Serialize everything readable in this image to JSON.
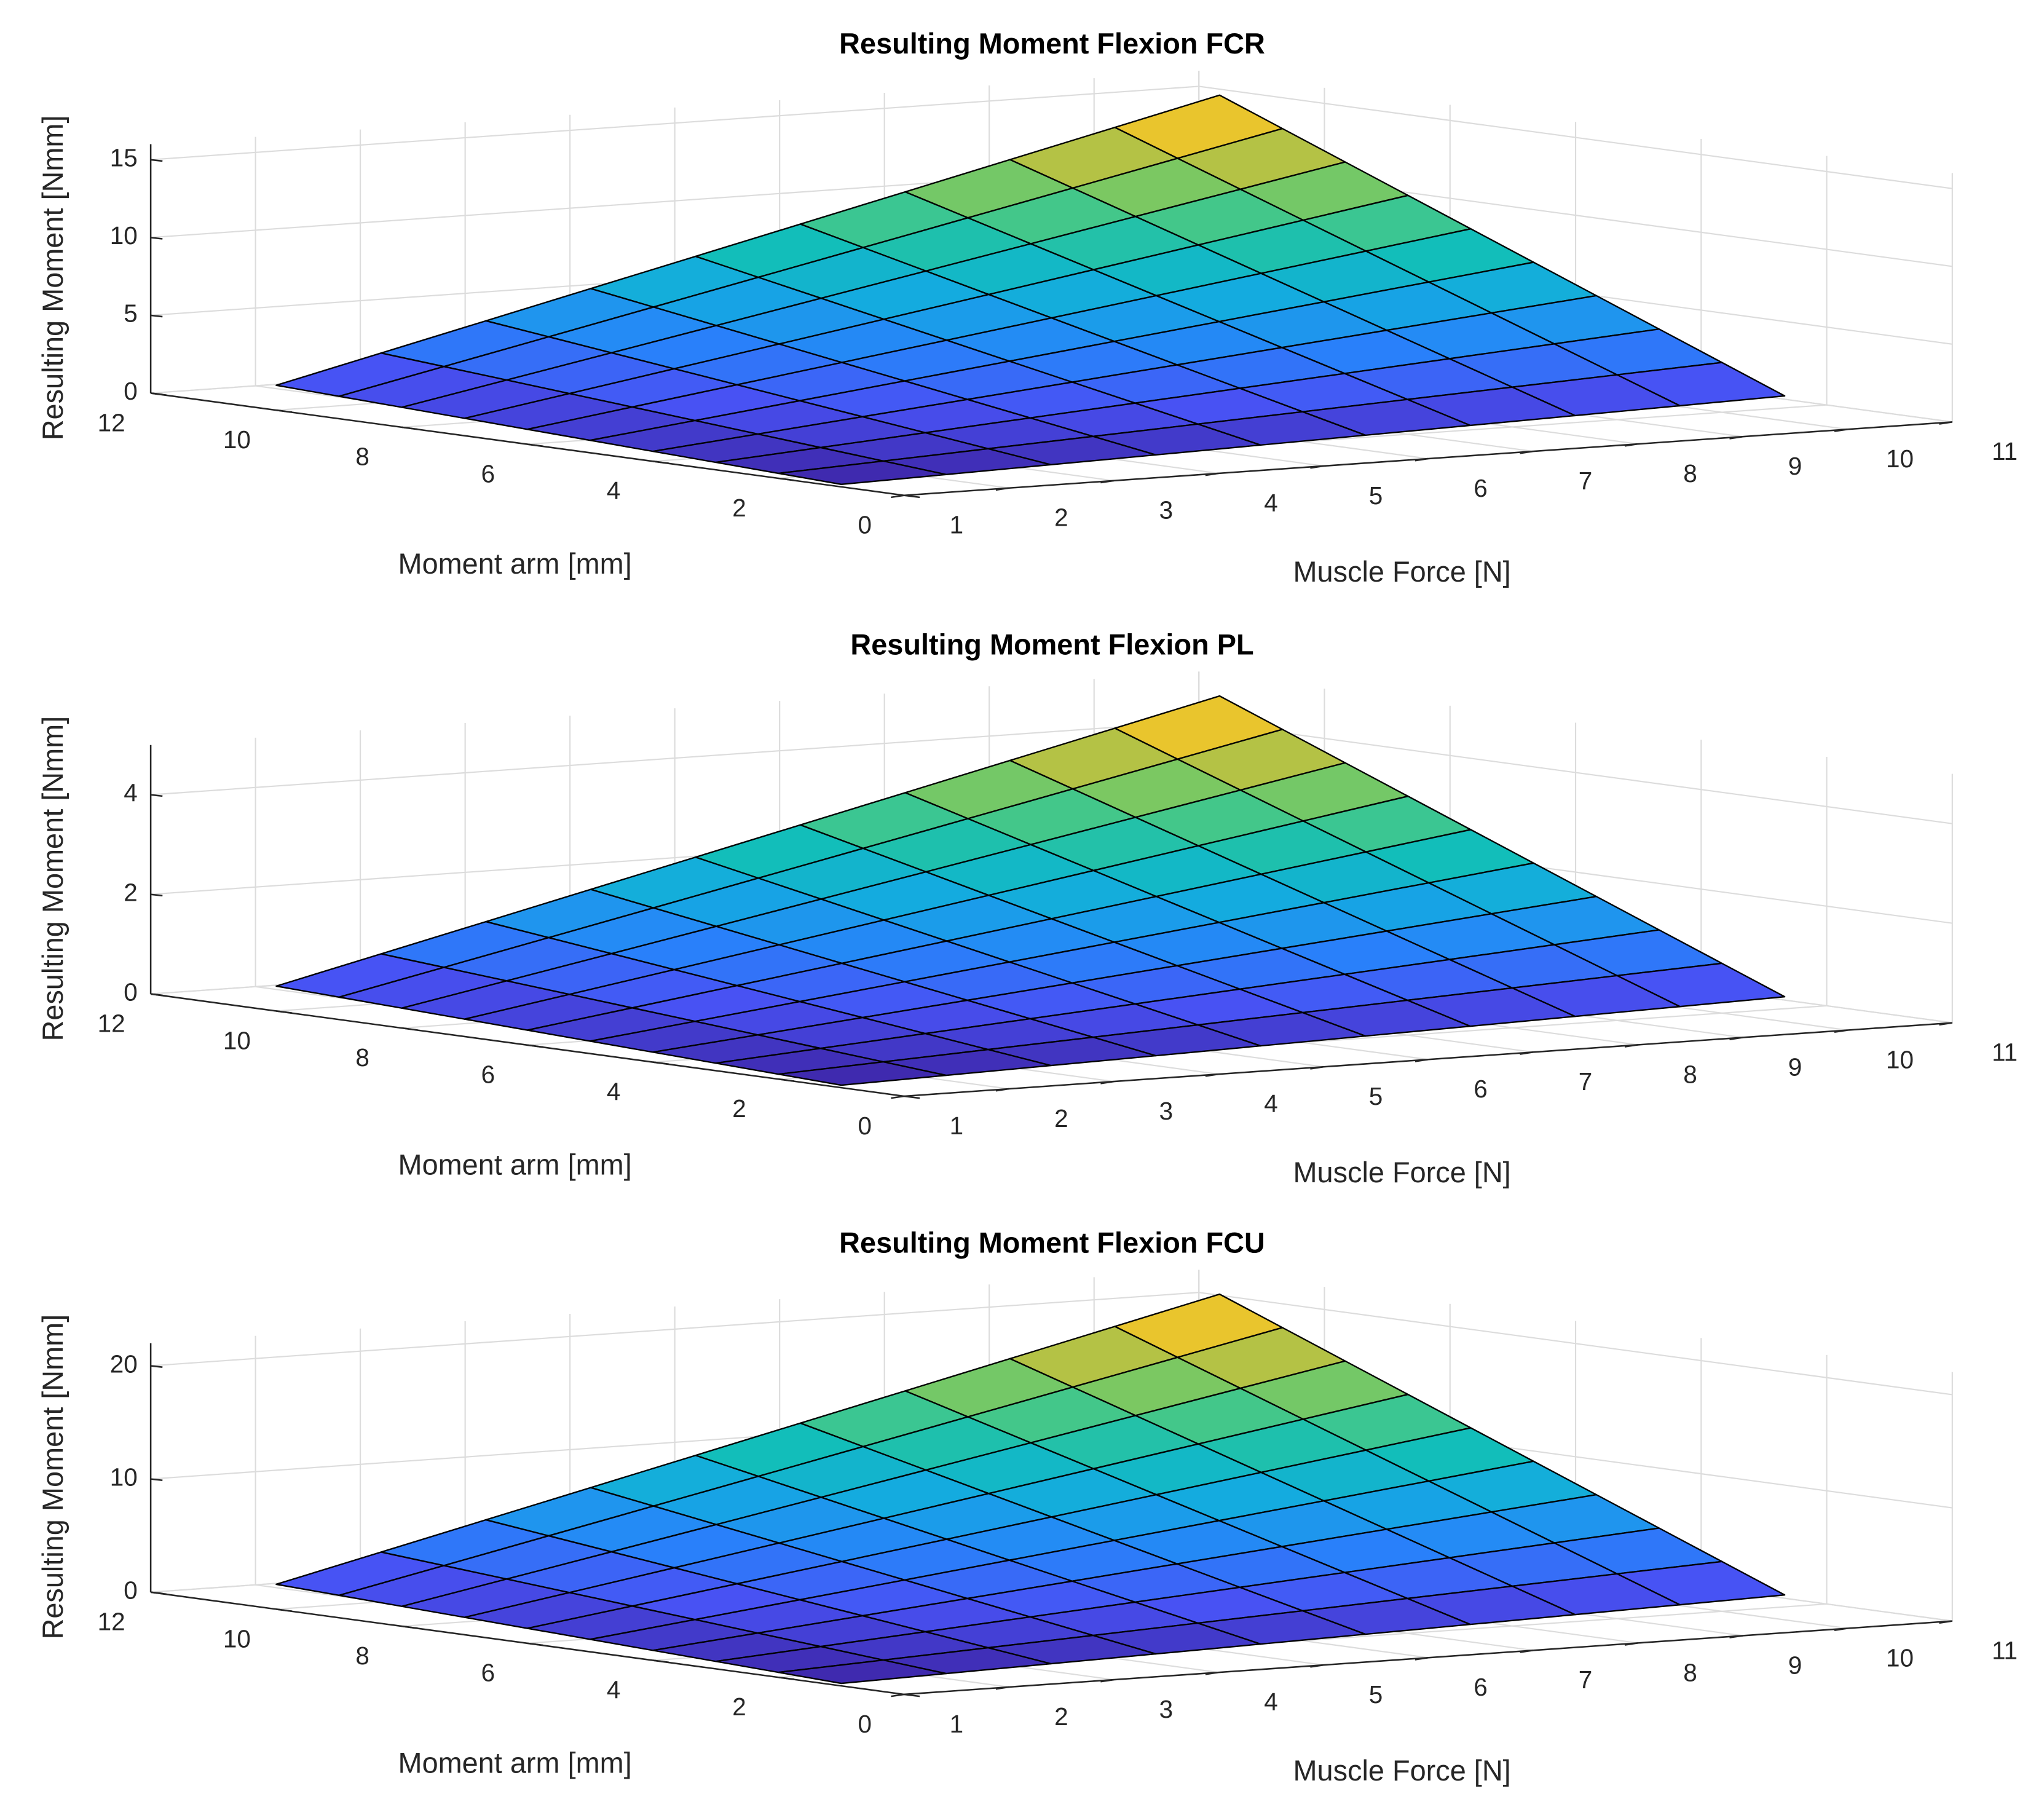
{
  "chart_data": [
    {
      "type": "surface",
      "title": "Resulting Moment Flexion FCR",
      "xlabel": "Muscle Force [N]",
      "ylabel": "Moment arm [mm]",
      "zlabel": "Resulting Moment [Nmm]",
      "x": [
        1,
        2,
        3,
        4,
        5,
        6,
        7,
        8,
        9,
        10
      ],
      "y": [
        1,
        2,
        3,
        4,
        5,
        6,
        7,
        8,
        9,
        10
      ],
      "z": [
        [
          0.16,
          0.32,
          0.48,
          0.64,
          0.8,
          0.96,
          1.12,
          1.28,
          1.44,
          1.6
        ],
        [
          0.32,
          0.64,
          0.96,
          1.28,
          1.6,
          1.92,
          2.24,
          2.56,
          2.88,
          3.2
        ],
        [
          0.48,
          0.96,
          1.44,
          1.92,
          2.4,
          2.88,
          3.36,
          3.84,
          4.32,
          4.8
        ],
        [
          0.64,
          1.28,
          1.92,
          2.56,
          3.2,
          3.84,
          4.48,
          5.12,
          5.76,
          6.4
        ],
        [
          0.8,
          1.6,
          2.4,
          3.2,
          4,
          4.8,
          5.6,
          6.4,
          7.2,
          8
        ],
        [
          0.96,
          1.92,
          2.88,
          3.84,
          4.8,
          5.76,
          6.72,
          7.68,
          8.64,
          9.6
        ],
        [
          1.12,
          2.24,
          3.36,
          4.48,
          5.6,
          6.72,
          7.84,
          8.96,
          10.08,
          11.2
        ],
        [
          1.28,
          2.56,
          3.84,
          5.12,
          6.4,
          7.68,
          8.96,
          10.24,
          11.52,
          12.8
        ],
        [
          1.44,
          2.88,
          4.32,
          5.76,
          7.2,
          8.64,
          10.08,
          11.52,
          12.96,
          14.4
        ],
        [
          1.6,
          3.2,
          4.8,
          6.4,
          8,
          9.6,
          11.2,
          12.8,
          14.4,
          16
        ]
      ],
      "xlim": [
        1,
        11
      ],
      "xticks": [
        1,
        2,
        3,
        4,
        5,
        6,
        7,
        8,
        9,
        10,
        11
      ],
      "ylim": [
        0,
        12
      ],
      "yticks": [
        0,
        2,
        4,
        6,
        8,
        10,
        12
      ],
      "zlim": [
        0,
        16
      ],
      "zticks": [
        0,
        5,
        10,
        15
      ],
      "colormap": "parula",
      "edgecolor": "#000000",
      "grid": true
    },
    {
      "type": "surface",
      "title": "Resulting Moment Flexion PL",
      "xlabel": "Muscle Force [N]",
      "ylabel": "Moment arm [mm]",
      "zlabel": "Resulting Moment [Nmm]",
      "x": [
        1,
        2,
        3,
        4,
        5,
        6,
        7,
        8,
        9,
        10
      ],
      "y": [
        1,
        2,
        3,
        4,
        5,
        6,
        7,
        8,
        9,
        10
      ],
      "z": [
        [
          0.05,
          0.1,
          0.15,
          0.2,
          0.25,
          0.3,
          0.35,
          0.4,
          0.45,
          0.5
        ],
        [
          0.1,
          0.2,
          0.3,
          0.4,
          0.5,
          0.6,
          0.7,
          0.8,
          0.9,
          1
        ],
        [
          0.15,
          0.3,
          0.45,
          0.6,
          0.75,
          0.9,
          1.05,
          1.2,
          1.35,
          1.5
        ],
        [
          0.2,
          0.4,
          0.6,
          0.8,
          1,
          1.2,
          1.4,
          1.6,
          1.8,
          2
        ],
        [
          0.25,
          0.5,
          0.75,
          1,
          1.25,
          1.5,
          1.75,
          2,
          2.25,
          2.5
        ],
        [
          0.3,
          0.6,
          0.9,
          1.2,
          1.5,
          1.8,
          2.1,
          2.4,
          2.7,
          3
        ],
        [
          0.35,
          0.7,
          1.05,
          1.4,
          1.75,
          2.1,
          2.45,
          2.8,
          3.15,
          3.5
        ],
        [
          0.4,
          0.8,
          1.2,
          1.6,
          2,
          2.4,
          2.8,
          3.2,
          3.6,
          4
        ],
        [
          0.45,
          0.9,
          1.35,
          1.8,
          2.25,
          2.7,
          3.15,
          3.6,
          4.05,
          4.5
        ],
        [
          0.5,
          1,
          1.5,
          2,
          2.5,
          3,
          3.5,
          4,
          4.5,
          5
        ]
      ],
      "xlim": [
        1,
        11
      ],
      "xticks": [
        1,
        2,
        3,
        4,
        5,
        6,
        7,
        8,
        9,
        10,
        11
      ],
      "ylim": [
        0,
        12
      ],
      "yticks": [
        0,
        2,
        4,
        6,
        8,
        10,
        12
      ],
      "zlim": [
        0,
        5
      ],
      "zticks": [
        0,
        2,
        4
      ],
      "colormap": "parula",
      "edgecolor": "#000000",
      "grid": true
    },
    {
      "type": "surface",
      "title": "Resulting Moment Flexion FCU",
      "xlabel": "Muscle Force [N]",
      "ylabel": "Moment arm [mm]",
      "zlabel": "Resulting Moment [Nmm]",
      "x": [
        1,
        2,
        3,
        4,
        5,
        6,
        7,
        8,
        9,
        10
      ],
      "y": [
        1,
        2,
        3,
        4,
        5,
        6,
        7,
        8,
        9,
        10
      ],
      "z": [
        [
          0.22,
          0.44,
          0.66,
          0.88,
          1.1,
          1.32,
          1.54,
          1.76,
          1.98,
          2.2
        ],
        [
          0.44,
          0.88,
          1.32,
          1.76,
          2.2,
          2.64,
          3.08,
          3.52,
          3.96,
          4.4
        ],
        [
          0.66,
          1.32,
          1.98,
          2.64,
          3.3,
          3.96,
          4.62,
          5.28,
          5.94,
          6.6
        ],
        [
          0.88,
          1.76,
          2.64,
          3.52,
          4.4,
          5.28,
          6.16,
          7.04,
          7.92,
          8.8
        ],
        [
          1.1,
          2.2,
          3.3,
          4.4,
          5.5,
          6.6,
          7.7,
          8.8,
          9.9,
          11
        ],
        [
          1.32,
          2.64,
          3.96,
          5.28,
          6.6,
          7.92,
          9.24,
          10.56,
          11.88,
          13.2
        ],
        [
          1.54,
          3.08,
          4.62,
          6.16,
          7.7,
          9.24,
          10.78,
          12.32,
          13.86,
          15.4
        ],
        [
          1.76,
          3.52,
          5.28,
          7.04,
          8.8,
          10.56,
          12.32,
          14.08,
          15.84,
          17.6
        ],
        [
          1.98,
          3.96,
          5.94,
          7.92,
          9.9,
          11.88,
          13.86,
          15.84,
          17.82,
          19.8
        ],
        [
          2.2,
          4.4,
          6.6,
          8.8,
          11,
          13.2,
          15.4,
          17.6,
          19.8,
          22
        ]
      ],
      "xlim": [
        1,
        11
      ],
      "xticks": [
        1,
        2,
        3,
        4,
        5,
        6,
        7,
        8,
        9,
        10,
        11
      ],
      "ylim": [
        0,
        12
      ],
      "yticks": [
        0,
        2,
        4,
        6,
        8,
        10,
        12
      ],
      "zlim": [
        0,
        22
      ],
      "zticks": [
        0,
        10,
        20
      ],
      "colormap": "parula",
      "edgecolor": "#000000",
      "grid": true
    }
  ]
}
